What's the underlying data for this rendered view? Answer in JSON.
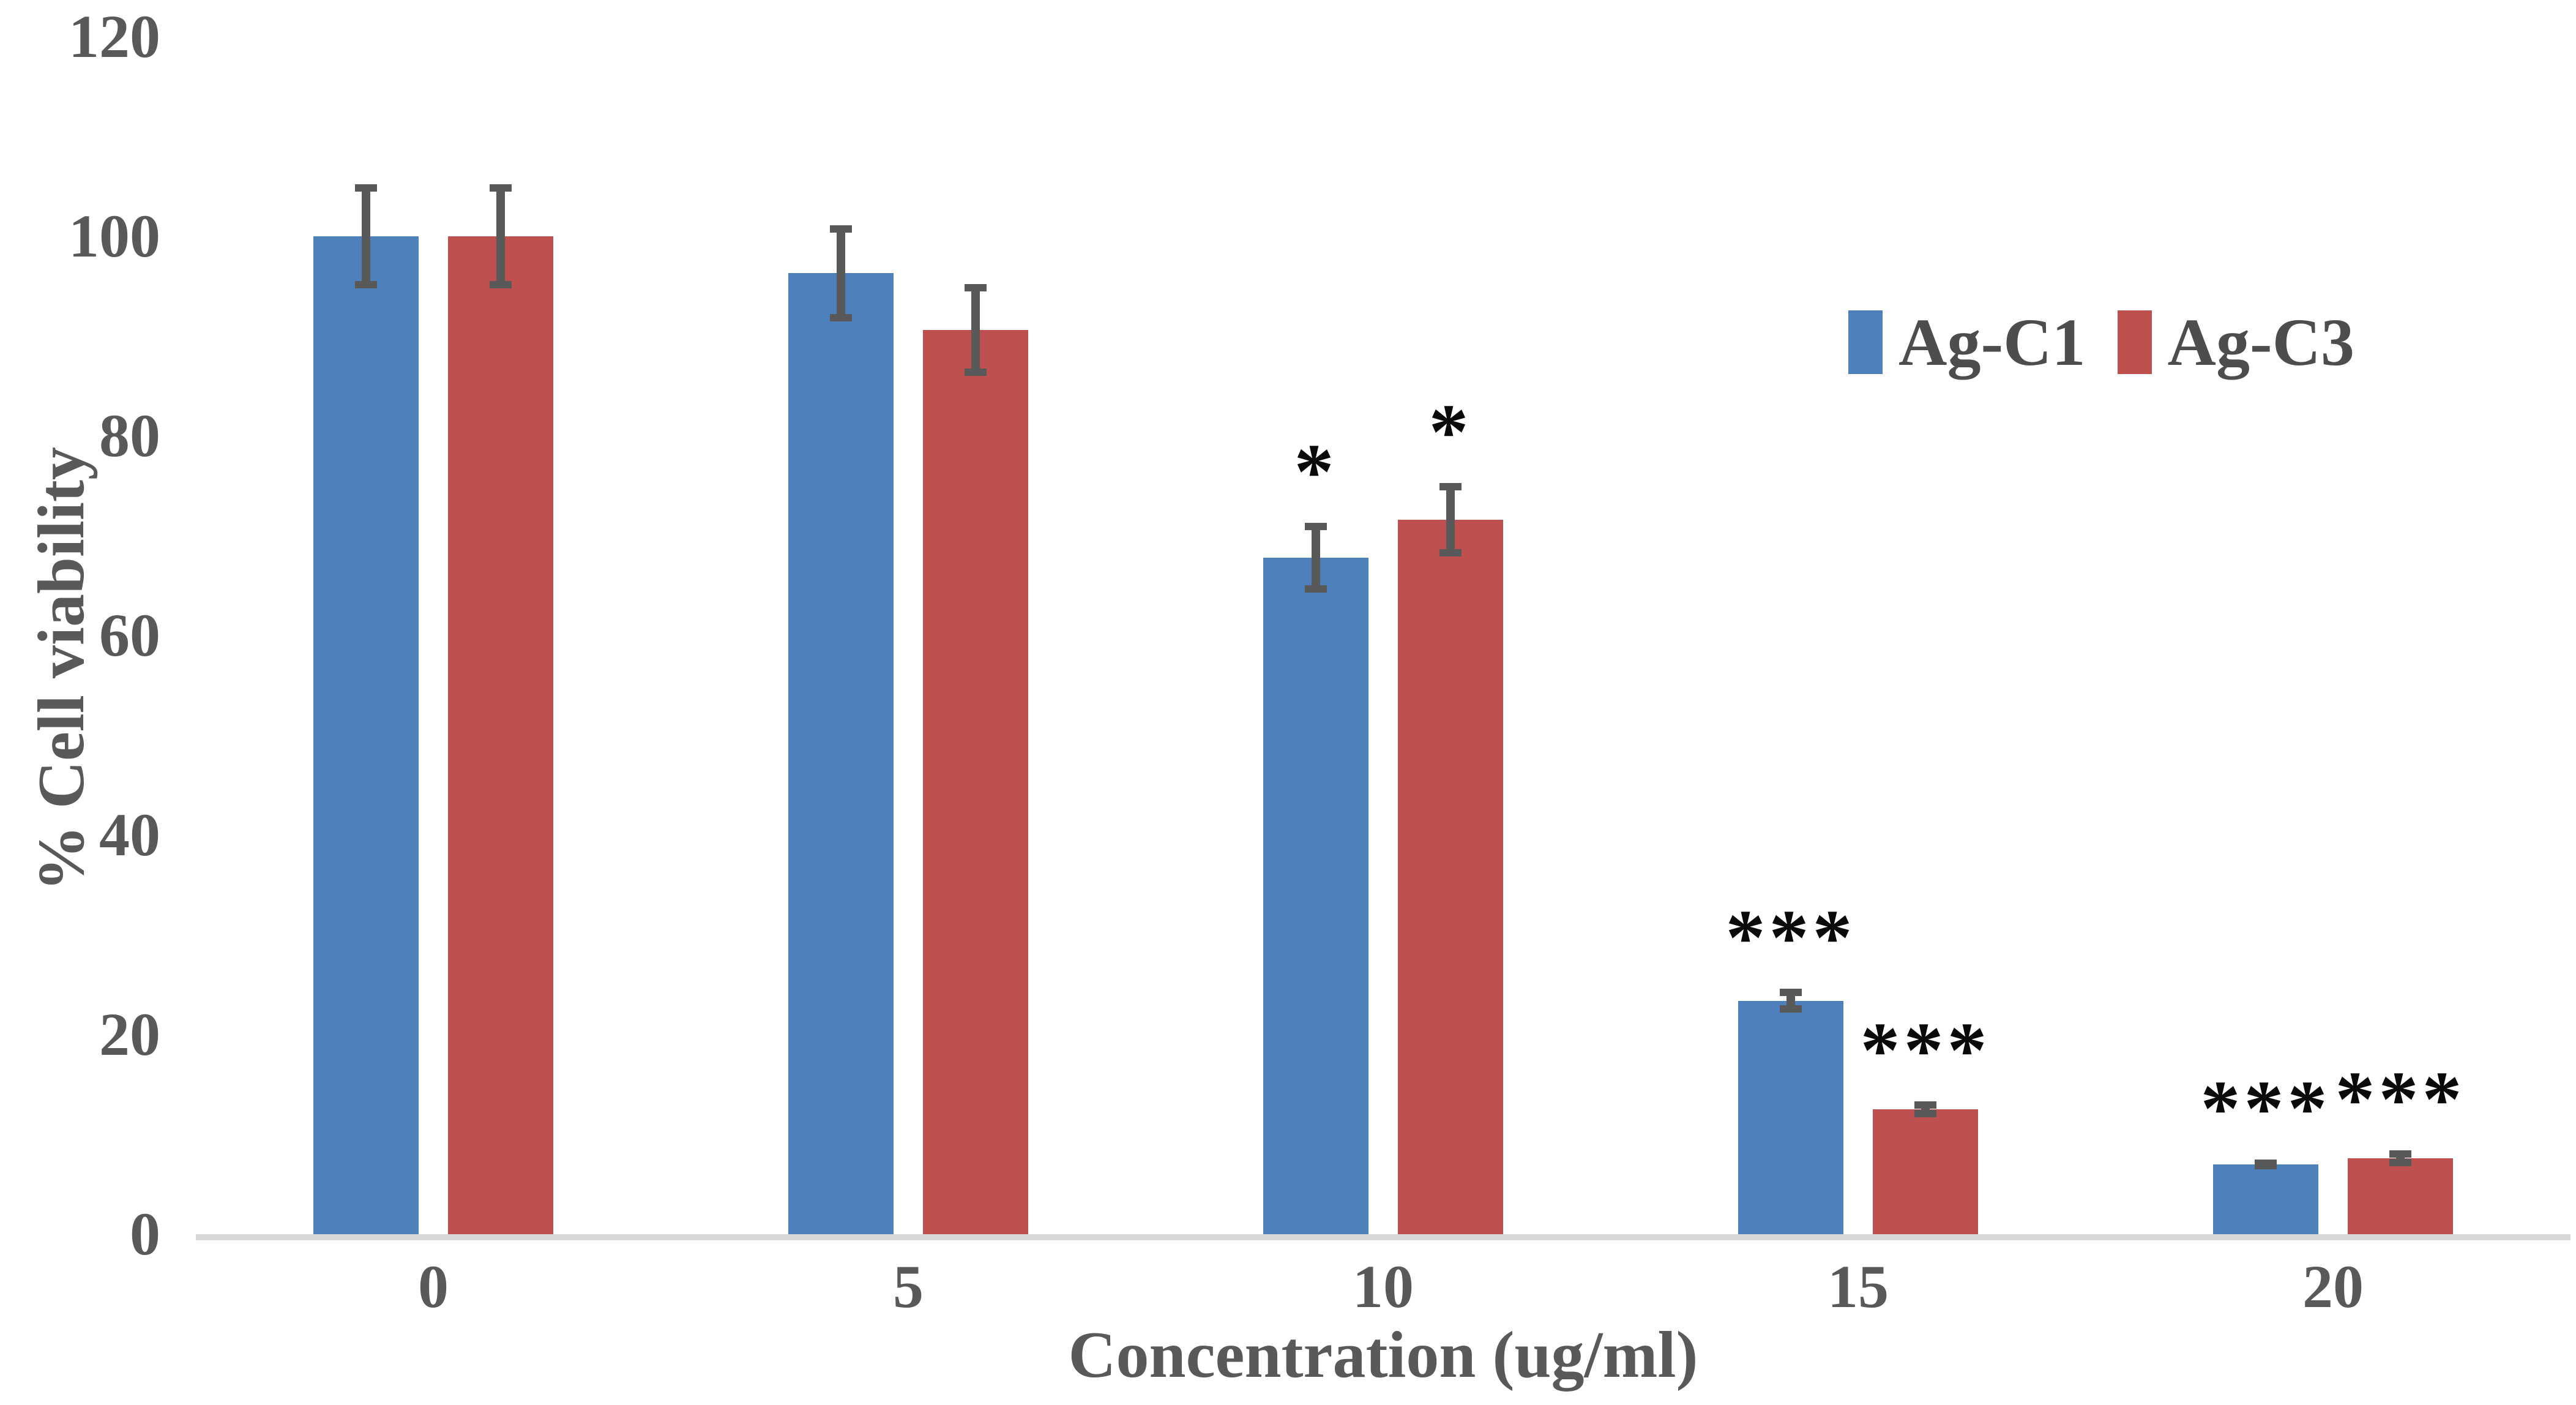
{
  "chart_data": {
    "type": "bar",
    "title": "",
    "xlabel": "Concentration (ug/ml)",
    "ylabel": "% Cell viability",
    "categories": [
      "0",
      "5",
      "10",
      "15",
      "20"
    ],
    "series": [
      {
        "name": "Ag-C1",
        "color": "#4E81BC",
        "values": [
          100,
          96.3,
          67.8,
          23.4,
          7.0
        ],
        "errors": [
          5.2,
          4.8,
          3.5,
          1.2,
          0.5
        ],
        "significance": [
          "",
          "",
          "*",
          "***",
          "***"
        ]
      },
      {
        "name": "Ag-C3",
        "color": "#BE5050",
        "values": [
          100,
          90.6,
          71.6,
          12.5,
          7.6
        ],
        "errors": [
          5.2,
          4.6,
          3.7,
          0.8,
          0.8
        ],
        "significance": [
          "",
          "",
          "*",
          "***",
          "***"
        ]
      }
    ],
    "ylim": [
      0,
      120
    ],
    "yticks": [
      0,
      20,
      40,
      60,
      80,
      100,
      120
    ],
    "grid": false,
    "legend_position": "top-right",
    "error_bar_color": "#595959",
    "axis_line_color": "#D8D8D8",
    "text_color": "#595959",
    "significance_color": "#0A0A0A"
  },
  "legend": {
    "items": [
      {
        "label": "Ag-C1",
        "color": "#4E81BC"
      },
      {
        "label": "Ag-C3",
        "color": "#BE5050"
      }
    ]
  }
}
